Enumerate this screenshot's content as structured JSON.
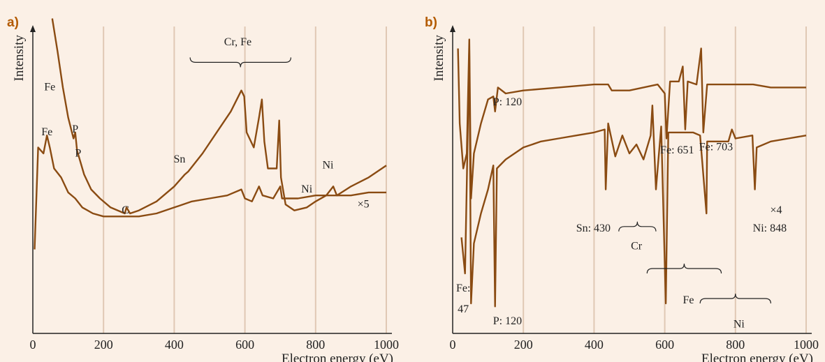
{
  "colors": {
    "background": "#fbf0e6",
    "trace": "#8a4b12",
    "grid": "#e0c8b4"
  },
  "panels": [
    {
      "label": "a)",
      "ylabel": "Intensity",
      "xlabel": "Electron energy (eV)",
      "annotations": [
        {
          "text": "Fe",
          "x": 48,
          "y": 0.81
        },
        {
          "text": "Fe",
          "x": 40,
          "y": 0.66
        },
        {
          "text": "P",
          "x": 120,
          "y": 0.67
        },
        {
          "text": "P",
          "x": 128,
          "y": 0.59
        },
        {
          "text": "C",
          "x": 262,
          "y": 0.4
        },
        {
          "text": "Sn",
          "x": 415,
          "y": 0.57
        },
        {
          "text": "Cr, Fe",
          "x": 580,
          "y": 0.96
        },
        {
          "text": "Ni",
          "x": 775,
          "y": 0.47
        },
        {
          "text": "Ni",
          "x": 835,
          "y": 0.55
        },
        {
          "text": "×5",
          "x": 935,
          "y": 0.42
        }
      ],
      "braces": [
        {
          "x1": 445,
          "x2": 730,
          "y": 0.92
        }
      ]
    },
    {
      "label": "b)",
      "ylabel": "Intensity",
      "xlabel": "Electron energy (eV)",
      "annotations": [
        {
          "text": "P: 120",
          "x": 155,
          "y": 0.76
        },
        {
          "text": "Fe: 651",
          "x": 635,
          "y": 0.6
        },
        {
          "text": "Fe: 703",
          "x": 745,
          "y": 0.61
        },
        {
          "text": "Sn: 430",
          "x": 398,
          "y": 0.34
        },
        {
          "text": "Cr",
          "x": 520,
          "y": 0.28
        },
        {
          "text": "×4",
          "x": 915,
          "y": 0.4
        },
        {
          "text": "Ni: 848",
          "x": 897,
          "y": 0.34
        },
        {
          "text": "Fe:",
          "x": 30,
          "y": 0.14
        },
        {
          "text": "47",
          "x": 30,
          "y": 0.07
        },
        {
          "text": "P: 120",
          "x": 155,
          "y": 0.03
        },
        {
          "text": "Fe",
          "x": 667,
          "y": 0.1
        },
        {
          "text": "Ni",
          "x": 810,
          "y": 0.02
        }
      ],
      "braces": [
        {
          "x1": 470,
          "x2": 575,
          "y": 0.34,
          "down": true
        },
        {
          "x1": 550,
          "x2": 760,
          "y": 0.2,
          "down": true
        },
        {
          "x1": 700,
          "x2": 900,
          "y": 0.1,
          "down": true
        }
      ]
    }
  ],
  "chart_data": [
    {
      "type": "line",
      "title": "",
      "xlabel": "Electron energy (eV)",
      "ylabel": "Intensity",
      "xlim": [
        0,
        1000
      ],
      "x_ticks": [
        0,
        200,
        400,
        600,
        800,
        1000
      ],
      "y_ticks": false,
      "grid": "vertical",
      "series": [
        {
          "points": [
            [
              5,
              0.28
            ],
            [
              15,
              0.62
            ],
            [
              30,
              0.6
            ],
            [
              40,
              0.66
            ],
            [
              48,
              0.62
            ],
            [
              60,
              0.55
            ],
            [
              80,
              0.52
            ],
            [
              100,
              0.47
            ],
            [
              120,
              0.45
            ],
            [
              140,
              0.42
            ],
            [
              170,
              0.4
            ],
            [
              200,
              0.39
            ],
            [
              250,
              0.39
            ],
            [
              300,
              0.39
            ],
            [
              350,
              0.4
            ],
            [
              400,
              0.42
            ],
            [
              450,
              0.44
            ],
            [
              500,
              0.45
            ],
            [
              550,
              0.46
            ],
            [
              590,
              0.48
            ],
            [
              600,
              0.45
            ],
            [
              620,
              0.44
            ],
            [
              640,
              0.49
            ],
            [
              650,
              0.46
            ],
            [
              680,
              0.45
            ],
            [
              700,
              0.49
            ],
            [
              705,
              0.45
            ],
            [
              750,
              0.45
            ],
            [
              800,
              0.46
            ],
            [
              850,
              0.46
            ],
            [
              900,
              0.46
            ],
            [
              950,
              0.47
            ],
            [
              1000,
              0.47
            ]
          ]
        },
        {
          "points": [
            [
              55,
              1.05
            ],
            [
              70,
              0.94
            ],
            [
              85,
              0.82
            ],
            [
              100,
              0.72
            ],
            [
              115,
              0.65
            ],
            [
              120,
              0.67
            ],
            [
              125,
              0.61
            ],
            [
              145,
              0.53
            ],
            [
              165,
              0.48
            ],
            [
              190,
              0.45
            ],
            [
              220,
              0.42
            ],
            [
              260,
              0.4
            ],
            [
              265,
              0.42
            ],
            [
              275,
              0.4
            ],
            [
              300,
              0.41
            ],
            [
              350,
              0.44
            ],
            [
              400,
              0.49
            ],
            [
              430,
              0.53
            ],
            [
              440,
              0.54
            ],
            [
              480,
              0.6
            ],
            [
              520,
              0.67
            ],
            [
              560,
              0.74
            ],
            [
              590,
              0.81
            ],
            [
              598,
              0.79
            ],
            [
              605,
              0.67
            ],
            [
              625,
              0.62
            ],
            [
              640,
              0.72
            ],
            [
              648,
              0.78
            ],
            [
              655,
              0.64
            ],
            [
              665,
              0.55
            ],
            [
              690,
              0.55
            ],
            [
              697,
              0.71
            ],
            [
              702,
              0.52
            ],
            [
              715,
              0.43
            ],
            [
              740,
              0.41
            ],
            [
              775,
              0.42
            ],
            [
              800,
              0.44
            ],
            [
              830,
              0.46
            ],
            [
              850,
              0.49
            ],
            [
              860,
              0.46
            ],
            [
              900,
              0.49
            ],
            [
              950,
              0.52
            ],
            [
              1000,
              0.56
            ]
          ]
        }
      ]
    },
    {
      "type": "line",
      "title": "",
      "xlabel": "Electron energy (eV)",
      "ylabel": "Intensity",
      "xlim": [
        0,
        1000
      ],
      "x_ticks": [
        0,
        200,
        400,
        600,
        800,
        1000
      ],
      "y_ticks": false,
      "grid": "vertical",
      "series": [
        {
          "points": [
            [
              15,
              0.95
            ],
            [
              20,
              0.7
            ],
            [
              30,
              0.55
            ],
            [
              40,
              0.6
            ],
            [
              47,
              0.98
            ],
            [
              52,
              0.45
            ],
            [
              60,
              0.6
            ],
            [
              80,
              0.7
            ],
            [
              100,
              0.78
            ],
            [
              115,
              0.79
            ],
            [
              120,
              0.74
            ],
            [
              128,
              0.82
            ],
            [
              150,
              0.8
            ],
            [
              200,
              0.81
            ],
            [
              300,
              0.82
            ],
            [
              400,
              0.83
            ],
            [
              440,
              0.83
            ],
            [
              450,
              0.81
            ],
            [
              500,
              0.81
            ],
            [
              580,
              0.83
            ],
            [
              600,
              0.8
            ],
            [
              605,
              0.65
            ],
            [
              615,
              0.84
            ],
            [
              640,
              0.84
            ],
            [
              651,
              0.89
            ],
            [
              658,
              0.68
            ],
            [
              665,
              0.84
            ],
            [
              690,
              0.83
            ],
            [
              703,
              0.95
            ],
            [
              709,
              0.67
            ],
            [
              720,
              0.83
            ],
            [
              800,
              0.83
            ],
            [
              850,
              0.83
            ],
            [
              900,
              0.82
            ],
            [
              1000,
              0.82
            ]
          ]
        },
        {
          "points": [
            [
              25,
              0.32
            ],
            [
              35,
              0.2
            ],
            [
              40,
              0.5
            ],
            [
              47,
              0.95
            ],
            [
              52,
              0.1
            ],
            [
              60,
              0.3
            ],
            [
              80,
              0.4
            ],
            [
              100,
              0.48
            ],
            [
              115,
              0.56
            ],
            [
              120,
              0.09
            ],
            [
              125,
              0.55
            ],
            [
              150,
              0.58
            ],
            [
              200,
              0.62
            ],
            [
              250,
              0.64
            ],
            [
              300,
              0.65
            ],
            [
              350,
              0.66
            ],
            [
              400,
              0.67
            ],
            [
              430,
              0.68
            ],
            [
              433,
              0.48
            ],
            [
              440,
              0.7
            ],
            [
              460,
              0.59
            ],
            [
              480,
              0.66
            ],
            [
              500,
              0.6
            ],
            [
              520,
              0.63
            ],
            [
              540,
              0.58
            ],
            [
              560,
              0.66
            ],
            [
              565,
              0.76
            ],
            [
              575,
              0.48
            ],
            [
              590,
              0.69
            ],
            [
              603,
              0.1
            ],
            [
              610,
              0.67
            ],
            [
              640,
              0.67
            ],
            [
              680,
              0.67
            ],
            [
              700,
              0.66
            ],
            [
              718,
              0.4
            ],
            [
              720,
              0.64
            ],
            [
              750,
              0.64
            ],
            [
              780,
              0.64
            ],
            [
              790,
              0.68
            ],
            [
              800,
              0.65
            ],
            [
              848,
              0.66
            ],
            [
              855,
              0.48
            ],
            [
              860,
              0.62
            ],
            [
              900,
              0.64
            ],
            [
              950,
              0.65
            ],
            [
              1000,
              0.66
            ]
          ]
        }
      ]
    }
  ]
}
